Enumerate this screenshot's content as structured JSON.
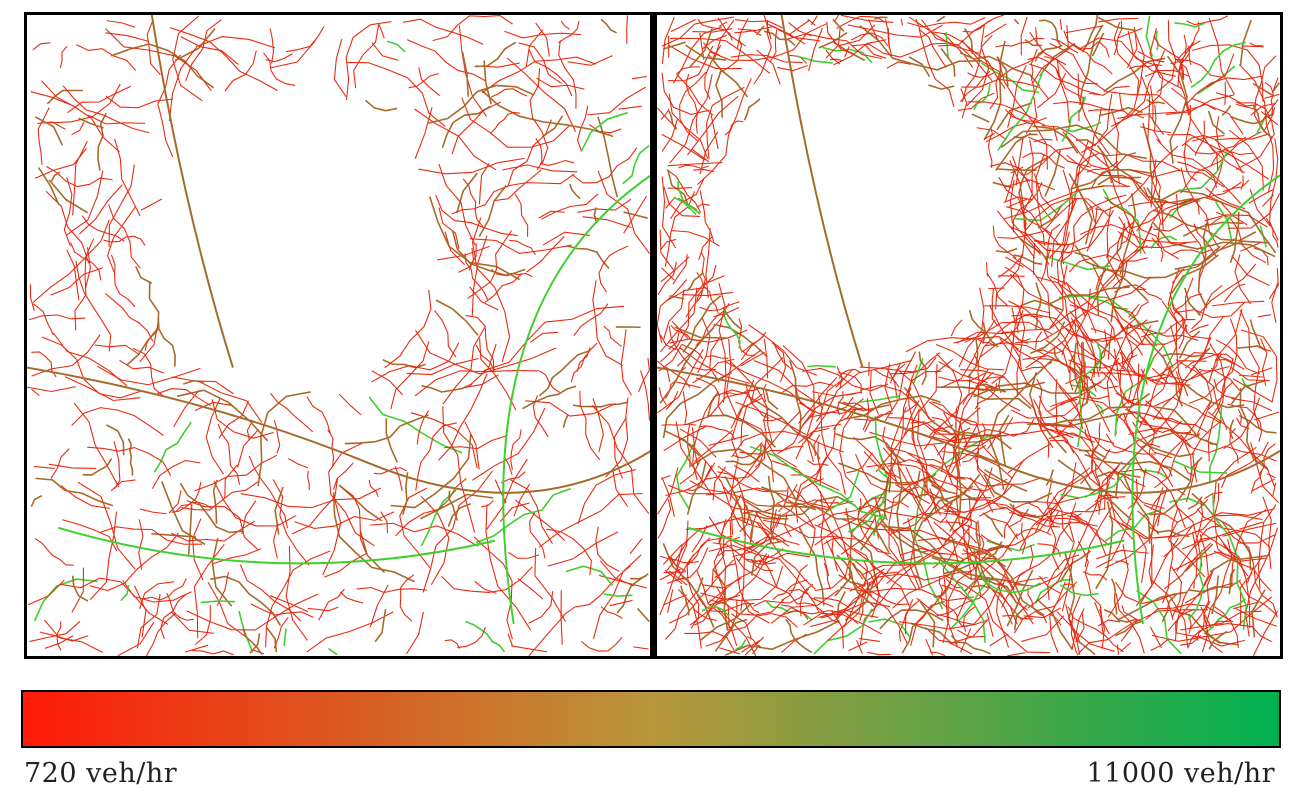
{
  "maps": {
    "left": {
      "description": "road network, major roads"
    },
    "right": {
      "description": "road network, full detail"
    }
  },
  "colorbar": {
    "min_label": "720 veh/hr",
    "max_label": "11000 veh/hr",
    "min_value": 720,
    "max_value": 11000,
    "unit": "veh/hr",
    "low_color": "#ff1a0a",
    "mid_color": "#b8963c",
    "high_color": "#00b050"
  },
  "colors": {
    "road_low": "#e82a10",
    "road_mid": "#a56a28",
    "road_high": "#3ecf2e",
    "frame": "#000000"
  }
}
